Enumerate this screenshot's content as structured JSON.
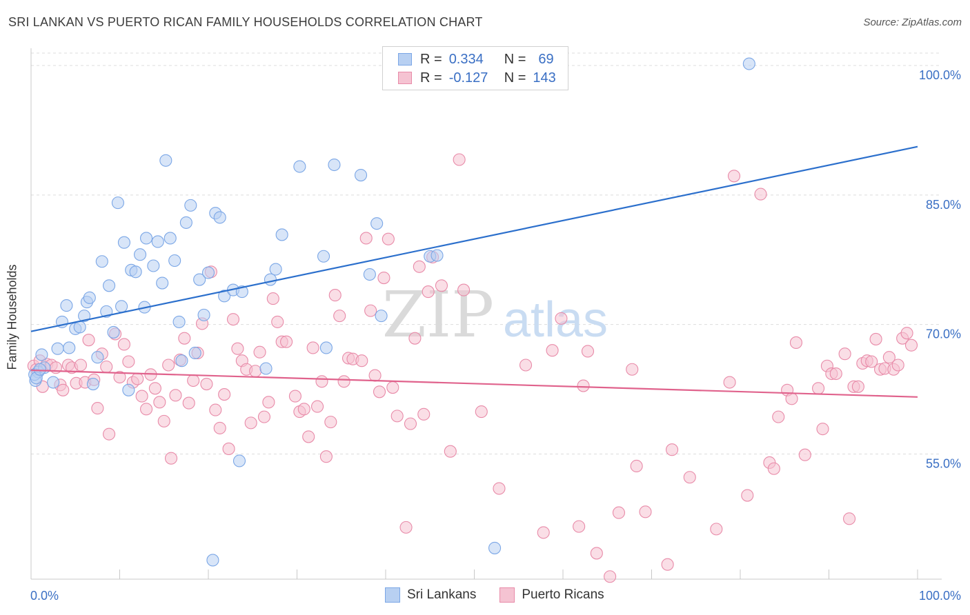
{
  "chart_data": {
    "type": "scatter",
    "title": "SRI LANKAN VS PUERTO RICAN FAMILY HOUSEHOLDS CORRELATION CHART",
    "source": "Source: ZipAtlas.com",
    "ylabel": "Family Households",
    "xlabel": "",
    "x_tick_labels": {
      "left": "0.0%",
      "right": "100.0%"
    },
    "y_tick_labels": [
      "100.0%",
      "85.0%",
      "70.0%",
      "55.0%"
    ],
    "y_tick_values": [
      100,
      85,
      70,
      55
    ],
    "xlim": [
      0,
      100
    ],
    "ylim": [
      40.5,
      102
    ],
    "watermark": {
      "zip": "ZIP",
      "atlas": "atlas"
    },
    "legend": {
      "rows": [
        {
          "r_label": "R =",
          "r_value": "0.334",
          "n_label": "N =",
          "n_value": "69"
        },
        {
          "r_label": "R =",
          "r_value": "-0.127",
          "n_label": "N =",
          "n_value": "143"
        }
      ]
    },
    "series": [
      {
        "name": "Sri Lankans",
        "color": "#7aa6e6",
        "fill": "#b8d0f2",
        "line_color": "#2b6fcc",
        "trend": {
          "x": [
            0,
            100
          ],
          "y": [
            69.2,
            90.6
          ]
        },
        "points": [
          [
            0.5,
            63.5
          ],
          [
            0.8,
            64.5
          ],
          [
            1.2,
            66.5
          ],
          [
            1.5,
            65.0
          ],
          [
            2.5,
            63.3
          ],
          [
            3.0,
            67.2
          ],
          [
            3.5,
            70.3
          ],
          [
            4.0,
            72.2
          ],
          [
            4.3,
            67.3
          ],
          [
            5.0,
            69.5
          ],
          [
            5.5,
            69.7
          ],
          [
            6.0,
            71.0
          ],
          [
            6.3,
            72.6
          ],
          [
            6.6,
            73.1
          ],
          [
            7.0,
            63.1
          ],
          [
            7.5,
            66.2
          ],
          [
            8.0,
            77.3
          ],
          [
            8.5,
            71.5
          ],
          [
            8.8,
            74.5
          ],
          [
            9.3,
            69.1
          ],
          [
            9.8,
            84.1
          ],
          [
            10.2,
            72.1
          ],
          [
            10.5,
            79.5
          ],
          [
            11.0,
            62.4
          ],
          [
            11.3,
            76.3
          ],
          [
            11.8,
            76.1
          ],
          [
            12.3,
            78.1
          ],
          [
            12.8,
            72.0
          ],
          [
            13.0,
            80.0
          ],
          [
            13.8,
            76.8
          ],
          [
            14.3,
            79.6
          ],
          [
            14.8,
            74.8
          ],
          [
            15.2,
            89.0
          ],
          [
            15.7,
            80.0
          ],
          [
            16.2,
            77.4
          ],
          [
            16.7,
            70.3
          ],
          [
            17.0,
            65.8
          ],
          [
            17.5,
            81.8
          ],
          [
            18.0,
            83.8
          ],
          [
            18.5,
            66.7
          ],
          [
            19.0,
            75.2
          ],
          [
            19.5,
            71.1
          ],
          [
            20.0,
            76.0
          ],
          [
            20.5,
            42.7
          ],
          [
            20.8,
            82.9
          ],
          [
            21.3,
            82.4
          ],
          [
            21.8,
            73.3
          ],
          [
            22.8,
            74.0
          ],
          [
            23.5,
            54.2
          ],
          [
            23.8,
            73.8
          ],
          [
            26.5,
            64.9
          ],
          [
            27.0,
            75.2
          ],
          [
            27.6,
            76.4
          ],
          [
            28.3,
            80.4
          ],
          [
            30.3,
            88.3
          ],
          [
            33.0,
            77.9
          ],
          [
            33.3,
            67.3
          ],
          [
            34.2,
            88.5
          ],
          [
            37.2,
            87.3
          ],
          [
            38.2,
            75.8
          ],
          [
            39.0,
            81.7
          ],
          [
            39.5,
            71.0
          ],
          [
            45.0,
            77.9
          ],
          [
            45.8,
            78.0
          ],
          [
            52.3,
            44.1
          ],
          [
            81.0,
            100.2
          ],
          [
            0.4,
            64.2
          ],
          [
            0.6,
            63.8
          ],
          [
            1.0,
            64.8
          ]
        ]
      },
      {
        "name": "Puerto Ricans",
        "color": "#e88aa8",
        "fill": "#f5c3d2",
        "line_color": "#e0628c",
        "trend": {
          "x": [
            0,
            100
          ],
          "y": [
            64.7,
            61.6
          ]
        },
        "points": [
          [
            0.3,
            65.2
          ],
          [
            0.6,
            64.8
          ],
          [
            1.0,
            65.8
          ],
          [
            1.3,
            62.8
          ],
          [
            1.8,
            65.4
          ],
          [
            2.3,
            65.3
          ],
          [
            2.8,
            65.0
          ],
          [
            3.3,
            63.0
          ],
          [
            3.6,
            62.4
          ],
          [
            4.2,
            65.3
          ],
          [
            4.6,
            65.0
          ],
          [
            5.1,
            63.2
          ],
          [
            5.6,
            65.3
          ],
          [
            6.1,
            63.3
          ],
          [
            6.5,
            68.2
          ],
          [
            7.1,
            63.6
          ],
          [
            7.5,
            60.3
          ],
          [
            8.0,
            66.6
          ],
          [
            8.5,
            65.1
          ],
          [
            8.8,
            57.3
          ],
          [
            9.5,
            68.9
          ],
          [
            10.0,
            63.9
          ],
          [
            10.5,
            67.7
          ],
          [
            11.0,
            65.7
          ],
          [
            11.5,
            63.3
          ],
          [
            12.0,
            63.7
          ],
          [
            12.5,
            61.7
          ],
          [
            13.0,
            60.2
          ],
          [
            13.5,
            64.2
          ],
          [
            14.0,
            62.6
          ],
          [
            14.5,
            61.0
          ],
          [
            15.0,
            58.8
          ],
          [
            15.5,
            65.3
          ],
          [
            15.8,
            54.5
          ],
          [
            16.3,
            61.8
          ],
          [
            16.8,
            65.9
          ],
          [
            17.3,
            68.4
          ],
          [
            17.8,
            60.9
          ],
          [
            18.3,
            63.5
          ],
          [
            18.8,
            66.7
          ],
          [
            19.3,
            70.1
          ],
          [
            19.8,
            63.1
          ],
          [
            20.3,
            76.1
          ],
          [
            20.8,
            60.1
          ],
          [
            21.3,
            58.0
          ],
          [
            21.8,
            61.9
          ],
          [
            22.3,
            55.6
          ],
          [
            22.8,
            70.6
          ],
          [
            23.3,
            67.2
          ],
          [
            23.8,
            65.8
          ],
          [
            24.3,
            64.8
          ],
          [
            24.8,
            58.6
          ],
          [
            25.3,
            64.6
          ],
          [
            25.8,
            66.8
          ],
          [
            26.3,
            59.3
          ],
          [
            26.8,
            61.0
          ],
          [
            27.3,
            73.0
          ],
          [
            27.8,
            70.3
          ],
          [
            28.3,
            68.0
          ],
          [
            28.8,
            68.0
          ],
          [
            29.8,
            61.7
          ],
          [
            30.3,
            59.9
          ],
          [
            30.8,
            60.2
          ],
          [
            31.3,
            57.0
          ],
          [
            31.8,
            67.3
          ],
          [
            32.3,
            60.5
          ],
          [
            32.8,
            63.4
          ],
          [
            33.3,
            54.7
          ],
          [
            33.8,
            58.7
          ],
          [
            34.3,
            73.4
          ],
          [
            34.8,
            71.0
          ],
          [
            35.3,
            63.4
          ],
          [
            35.8,
            66.1
          ],
          [
            36.3,
            66.0
          ],
          [
            37.3,
            65.8
          ],
          [
            37.8,
            80.0
          ],
          [
            38.3,
            71.6
          ],
          [
            38.8,
            64.1
          ],
          [
            39.3,
            62.2
          ],
          [
            39.8,
            75.4
          ],
          [
            40.3,
            79.9
          ],
          [
            40.8,
            62.7
          ],
          [
            41.3,
            59.4
          ],
          [
            42.3,
            46.5
          ],
          [
            42.8,
            58.5
          ],
          [
            43.3,
            68.4
          ],
          [
            43.8,
            76.7
          ],
          [
            44.3,
            59.6
          ],
          [
            44.8,
            73.8
          ],
          [
            45.3,
            77.8
          ],
          [
            46.3,
            74.5
          ],
          [
            47.3,
            55.3
          ],
          [
            48.3,
            89.1
          ],
          [
            48.8,
            74.0
          ],
          [
            50.8,
            59.9
          ],
          [
            52.8,
            51.0
          ],
          [
            55.8,
            65.3
          ],
          [
            57.8,
            45.9
          ],
          [
            58.8,
            67.0
          ],
          [
            59.8,
            70.7
          ],
          [
            61.8,
            46.6
          ],
          [
            62.3,
            62.9
          ],
          [
            62.8,
            66.9
          ],
          [
            63.8,
            43.5
          ],
          [
            65.3,
            40.8
          ],
          [
            66.3,
            48.2
          ],
          [
            67.8,
            64.8
          ],
          [
            68.3,
            53.6
          ],
          [
            69.3,
            48.3
          ],
          [
            71.8,
            42.2
          ],
          [
            72.3,
            55.5
          ],
          [
            74.3,
            52.3
          ],
          [
            77.3,
            46.3
          ],
          [
            78.8,
            63.3
          ],
          [
            79.3,
            87.2
          ],
          [
            80.8,
            50.2
          ],
          [
            82.3,
            85.1
          ],
          [
            83.3,
            54.0
          ],
          [
            83.8,
            53.3
          ],
          [
            84.3,
            59.3
          ],
          [
            85.3,
            62.4
          ],
          [
            85.8,
            61.4
          ],
          [
            86.3,
            67.9
          ],
          [
            87.3,
            54.9
          ],
          [
            88.8,
            62.6
          ],
          [
            89.3,
            57.9
          ],
          [
            89.8,
            65.2
          ],
          [
            90.3,
            64.3
          ],
          [
            90.8,
            64.3
          ],
          [
            91.8,
            66.6
          ],
          [
            92.3,
            47.5
          ],
          [
            92.8,
            62.8
          ],
          [
            93.3,
            62.8
          ],
          [
            93.8,
            65.5
          ],
          [
            94.3,
            65.8
          ],
          [
            94.8,
            65.7
          ],
          [
            95.3,
            68.3
          ],
          [
            95.8,
            64.8
          ],
          [
            96.3,
            64.9
          ],
          [
            96.8,
            66.2
          ],
          [
            97.3,
            64.8
          ],
          [
            97.8,
            65.3
          ],
          [
            98.3,
            68.4
          ],
          [
            98.8,
            69.0
          ],
          [
            99.3,
            67.6
          ]
        ]
      }
    ]
  },
  "legend_bottom": {
    "item1": "Sri Lankans",
    "item2": "Puerto Ricans"
  }
}
